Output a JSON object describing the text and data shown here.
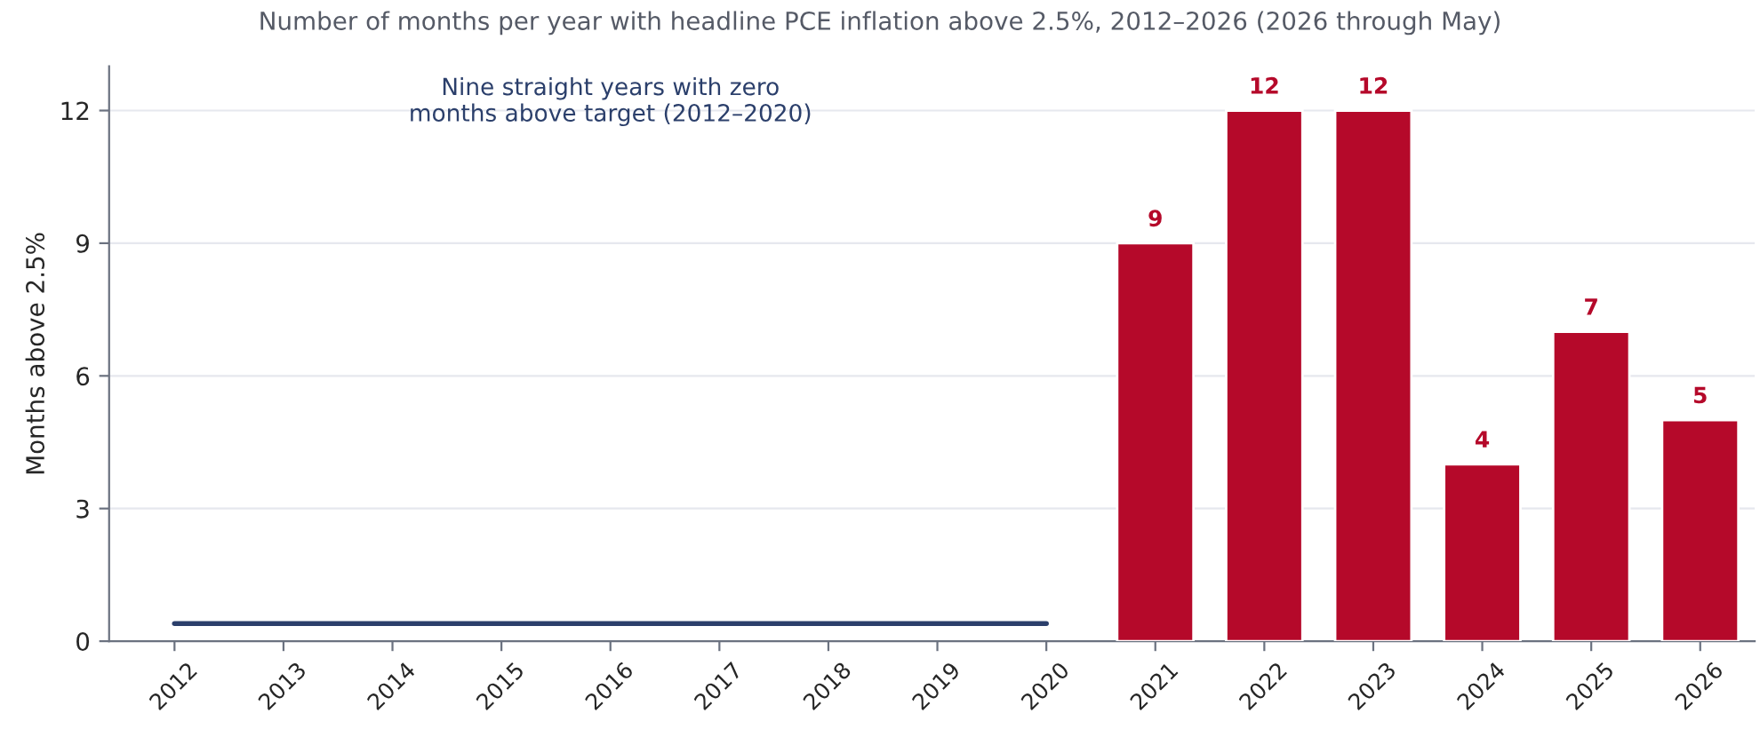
{
  "chart_data": {
    "type": "bar",
    "title": "Number of months per year with headline PCE inflation above 2.5%, 2012–2026 (2026 through May)",
    "ylabel": "Months above 2.5%",
    "categories": [
      "2012",
      "2013",
      "2014",
      "2015",
      "2016",
      "2017",
      "2018",
      "2019",
      "2020",
      "2021",
      "2022",
      "2023",
      "2024",
      "2025",
      "2026"
    ],
    "series": [
      {
        "type": "line",
        "color": "#2b3f6b",
        "values": [
          0.4,
          0.4,
          0.4,
          0.4,
          0.4,
          0.4,
          0.4,
          0.4,
          0.4,
          null,
          null,
          null,
          null,
          null,
          null
        ]
      },
      {
        "color": "#b5092a",
        "values": [
          null,
          null,
          null,
          null,
          null,
          null,
          null,
          null,
          null,
          9,
          12,
          12,
          4,
          7,
          5
        ],
        "value_labels": [
          null,
          null,
          null,
          null,
          null,
          null,
          null,
          null,
          null,
          "9",
          "12",
          "12",
          "4",
          "7",
          "5"
        ]
      }
    ],
    "annotations": [
      "Nine straight years with zero\nmonths above target (2012–2020)"
    ],
    "ylim": [
      0,
      13
    ],
    "yticks": [
      0,
      3,
      6,
      9,
      12
    ],
    "grid": "y",
    "marker": "none",
    "line_style": "solid"
  }
}
